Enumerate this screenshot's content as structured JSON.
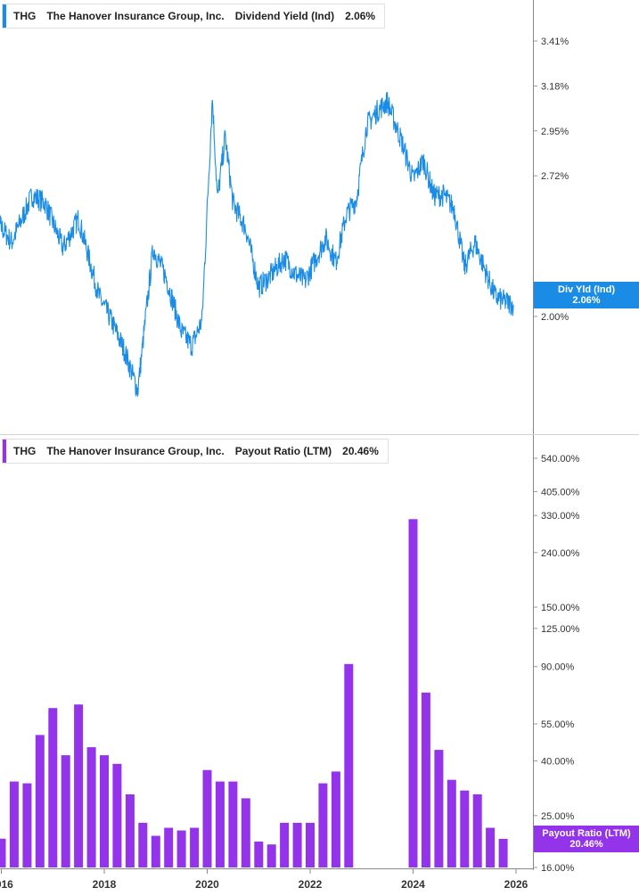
{
  "chart_data": [
    {
      "type": "line",
      "ticker": "THG",
      "company": "The Hanover Insurance Group, Inc.",
      "metric": "Dividend Yield (Ind)",
      "current_value": "2.06%",
      "tag_label": "Div Yld (Ind)",
      "color": "#1a8ce6",
      "y_ticks": [
        "3.41%",
        "3.18%",
        "2.95%",
        "2.72%",
        "2.00%"
      ],
      "y_tick_values": [
        3.41,
        3.18,
        2.95,
        2.72,
        2.0
      ],
      "ylim": [
        1.42,
        3.62
      ],
      "x": [
        2015.75,
        2016.2,
        2016.6,
        2016.85,
        2017.2,
        2017.5,
        2017.9,
        2018.1,
        2018.4,
        2018.65,
        2018.95,
        2019.2,
        2019.5,
        2019.7,
        2019.9,
        2020.1,
        2020.2,
        2020.35,
        2020.5,
        2020.75,
        2021.0,
        2021.2,
        2021.5,
        2021.7,
        2021.9,
        2022.3,
        2022.5,
        2022.7,
        2022.9,
        2023.1,
        2023.3,
        2023.5,
        2023.8,
        2024.0,
        2024.2,
        2024.4,
        2024.6,
        2024.8,
        2025.0,
        2025.2,
        2025.45,
        2025.6,
        2025.75,
        2025.95
      ],
      "values": [
        2.55,
        2.38,
        2.62,
        2.58,
        2.35,
        2.5,
        2.1,
        2.0,
        1.82,
        1.62,
        2.35,
        2.2,
        1.92,
        1.85,
        1.98,
        3.12,
        2.6,
        2.92,
        2.58,
        2.45,
        2.15,
        2.2,
        2.3,
        2.22,
        2.18,
        2.4,
        2.28,
        2.52,
        2.6,
        2.98,
        3.05,
        3.1,
        2.88,
        2.7,
        2.8,
        2.62,
        2.62,
        2.55,
        2.25,
        2.38,
        2.2,
        2.1,
        2.08,
        2.06
      ]
    },
    {
      "type": "bar",
      "ticker": "THG",
      "company": "The Hanover Insurance Group, Inc.",
      "metric": "Payout Ratio (LTM)",
      "current_value": "20.46%",
      "tag_label": "Payout Ratio (LTM)",
      "color": "#9333ea",
      "y_ticks": [
        "540.00%",
        "405.00%",
        "330.00%",
        "240.00%",
        "150.00%",
        "125.00%",
        "90.00%",
        "55.00%",
        "40.00%",
        "25.00%",
        "16.00%"
      ],
      "y_tick_values": [
        540,
        405,
        330,
        240,
        150,
        125,
        90,
        55,
        40,
        25,
        16
      ],
      "scale": "log",
      "x_labels": [
        "2016",
        "2018",
        "2020",
        "2022",
        "2024",
        "2026"
      ],
      "x_label_years": [
        2016,
        2018,
        2020,
        2022,
        2024,
        2026
      ],
      "bar_x": [
        2015.75,
        2016.0,
        2016.25,
        2016.5,
        2016.75,
        2017.0,
        2017.25,
        2017.5,
        2017.75,
        2018.0,
        2018.25,
        2018.5,
        2018.75,
        2019.0,
        2019.25,
        2019.5,
        2019.75,
        2020.0,
        2020.25,
        2020.5,
        2020.75,
        2021.0,
        2021.25,
        2021.5,
        2021.75,
        2022.0,
        2022.25,
        2022.5,
        2022.75,
        2023.0,
        2024.0,
        2024.25,
        2024.5,
        2024.75,
        2025.0,
        2025.25,
        2025.5,
        2025.75
      ],
      "values": [
        21.5,
        20.5,
        33.5,
        33,
        50,
        63,
        42,
        65,
        45,
        42,
        39,
        30,
        23.5,
        21,
        22.5,
        22,
        22.5,
        37,
        33.5,
        33.5,
        29,
        20,
        19.5,
        23.5,
        23.5,
        23.5,
        33,
        36.5,
        92,
        0,
        320,
        72,
        44,
        34,
        31,
        30,
        22.5,
        20.46
      ]
    }
  ]
}
